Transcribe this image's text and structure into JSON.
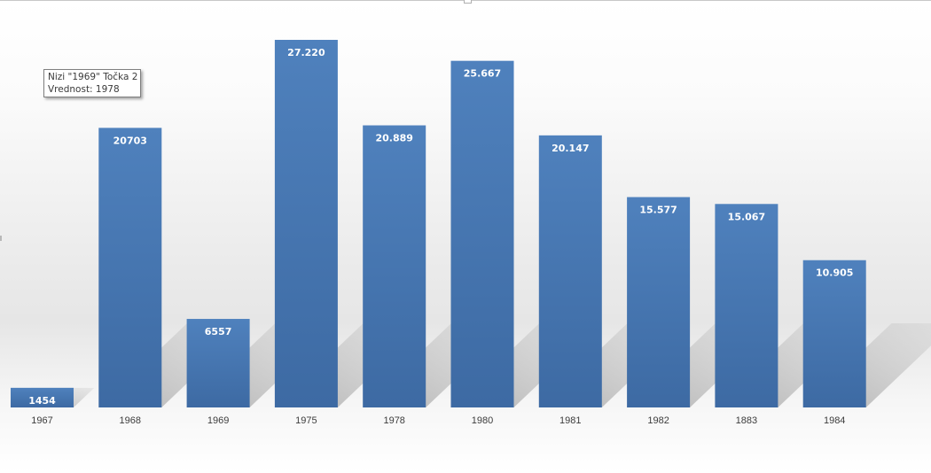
{
  "chart_data": {
    "type": "bar",
    "categories": [
      "1967",
      "1968",
      "1969",
      "1975",
      "1978",
      "1980",
      "1981",
      "1982",
      "1883",
      "1984"
    ],
    "values": [
      1454,
      20703,
      6557,
      27220,
      20889,
      25667,
      20147,
      15577,
      15067,
      10905
    ],
    "data_labels": [
      "1454",
      "20703",
      "6557",
      "27.220",
      "20.889",
      "25.667",
      "20.147",
      "15.577",
      "15.067",
      "10.905"
    ],
    "ylim": [
      0,
      27220
    ],
    "grid": false,
    "legend": "none",
    "colors": {
      "bar_top": "#4f81bd",
      "bar_bottom": "#3d6aa3",
      "shadow": "#b8b8b8"
    }
  },
  "tooltip": {
    "line1": "Nizi \"1969\" Točka 2",
    "line2": "Vrednost: 1978"
  }
}
